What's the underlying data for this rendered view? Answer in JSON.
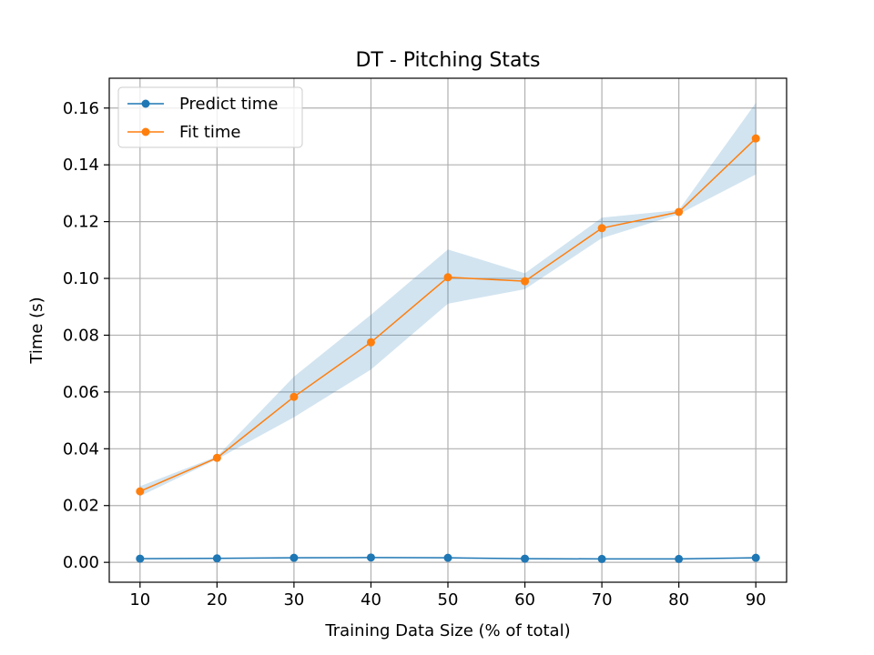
{
  "chart_data": {
    "type": "line",
    "title": "DT - Pitching Stats",
    "xlabel": "Training Data Size (% of total)",
    "ylabel": "Time (s)",
    "x": [
      10,
      20,
      30,
      40,
      50,
      60,
      70,
      80,
      90
    ],
    "xticks": [
      "10",
      "20",
      "30",
      "40",
      "50",
      "60",
      "70",
      "80",
      "90"
    ],
    "yticks": [
      "0.00",
      "0.02",
      "0.04",
      "0.06",
      "0.08",
      "0.10",
      "0.12",
      "0.14",
      "0.16"
    ],
    "xlim": [
      6,
      94
    ],
    "ylim": [
      -0.007,
      0.1705
    ],
    "grid": true,
    "legend_position": "top-left",
    "series": [
      {
        "name": "Predict time",
        "color": "#1f77b4",
        "values": [
          0.0013,
          0.0014,
          0.0016,
          0.0017,
          0.0016,
          0.0013,
          0.0012,
          0.0012,
          0.0016
        ],
        "band_low": [
          0.0012,
          0.0013,
          0.0015,
          0.0016,
          0.0015,
          0.0012,
          0.0011,
          0.0011,
          0.0015
        ],
        "band_high": [
          0.0014,
          0.0015,
          0.0017,
          0.0018,
          0.0017,
          0.0014,
          0.0013,
          0.0013,
          0.0017
        ]
      },
      {
        "name": "Fit time",
        "color": "#ff7f0e",
        "values": [
          0.025,
          0.0368,
          0.0583,
          0.0775,
          0.1004,
          0.099,
          0.1177,
          0.1234,
          0.1493
        ],
        "band_low": [
          0.0233,
          0.0363,
          0.0511,
          0.0679,
          0.0911,
          0.0962,
          0.1142,
          0.1226,
          0.1366
        ],
        "band_high": [
          0.0268,
          0.0373,
          0.0654,
          0.0872,
          0.1102,
          0.1018,
          0.1214,
          0.1241,
          0.1618
        ],
        "band_color": "#1f77b4"
      }
    ]
  }
}
